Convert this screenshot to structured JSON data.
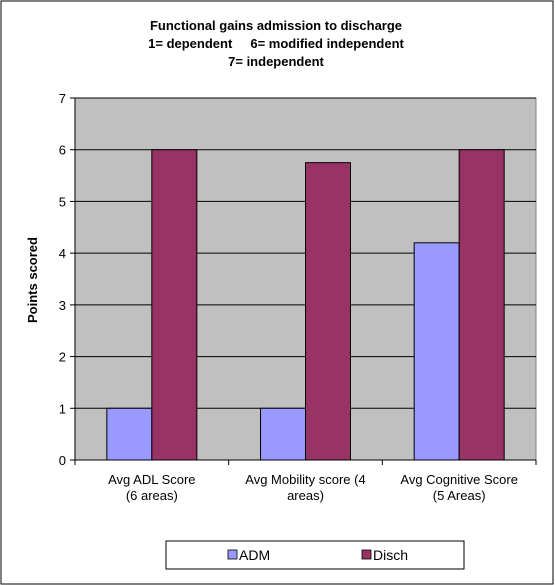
{
  "chart_data": {
    "type": "bar",
    "title_lines": [
      "Functional gains admission to discharge",
      "1= dependent     6= modified independent",
      "7= independent"
    ],
    "ylabel": "Points scored",
    "xlabel": "",
    "ylim": [
      0,
      7
    ],
    "yticks": [
      0,
      1,
      2,
      3,
      4,
      5,
      6,
      7
    ],
    "grid": true,
    "legend_position": "bottom",
    "categories": [
      [
        "Avg ADL Score",
        "(6 areas)"
      ],
      [
        "Avg Mobility score (4",
        "areas)"
      ],
      [
        "Avg Cognitive Score",
        "(5 Areas)"
      ]
    ],
    "series": [
      {
        "name": "ADM",
        "values": [
          1,
          1,
          4.2
        ],
        "color": "#9999ff"
      },
      {
        "name": "Disch",
        "values": [
          6,
          5.75,
          6
        ],
        "color": "#993366"
      }
    ],
    "plot_background": "#c0c0c0"
  }
}
